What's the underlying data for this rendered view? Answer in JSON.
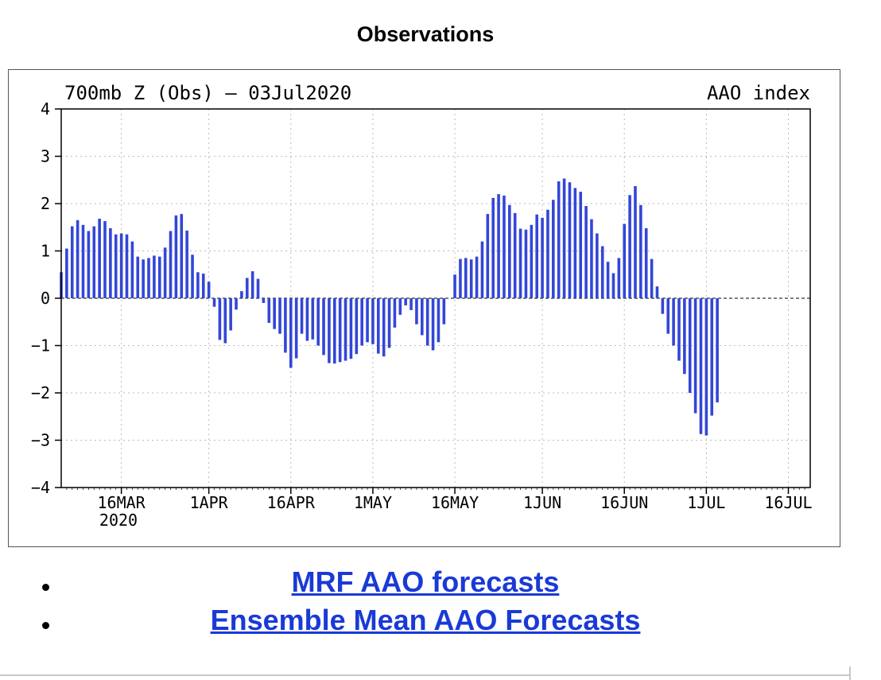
{
  "heading": "Observations",
  "links": [
    {
      "label": "MRF AAO forecasts"
    },
    {
      "label": "Ensemble Mean AAO Forecasts"
    }
  ],
  "colors": {
    "bar": "#3346d8",
    "link": "#1a3ad6"
  },
  "chart_data": {
    "type": "bar",
    "title": "700mb Z (Obs) — 03Jul2020",
    "title_right": "AAO index",
    "ylim": [
      -4,
      4
    ],
    "yticks": [
      4,
      3,
      2,
      1,
      0,
      -1,
      -2,
      -3,
      -4
    ],
    "ytick_labels": [
      "4",
      "3",
      "2",
      "1",
      "0",
      "−1",
      "−2",
      "−3",
      "−4"
    ],
    "xlim": [
      "2020-03-05",
      "2020-07-20"
    ],
    "x_start": "2020-03-05",
    "xticks": [
      {
        "date": "2020-03-16",
        "label": "16MAR"
      },
      {
        "date": "2020-04-01",
        "label": "1APR"
      },
      {
        "date": "2020-04-16",
        "label": "16APR"
      },
      {
        "date": "2020-05-01",
        "label": "1MAY"
      },
      {
        "date": "2020-05-16",
        "label": "16MAY"
      },
      {
        "date": "2020-06-01",
        "label": "1JUN"
      },
      {
        "date": "2020-06-16",
        "label": "16JUN"
      },
      {
        "date": "2020-07-01",
        "label": "1JUL"
      },
      {
        "date": "2020-07-16",
        "label": "16JUL"
      }
    ],
    "year_label": "2020",
    "grid": true,
    "values": [
      0.55,
      1.05,
      1.52,
      1.65,
      1.55,
      1.42,
      1.52,
      1.68,
      1.63,
      1.48,
      1.35,
      1.37,
      1.35,
      1.2,
      0.88,
      0.82,
      0.85,
      0.9,
      0.88,
      1.07,
      1.42,
      1.75,
      1.78,
      1.43,
      0.92,
      0.55,
      0.52,
      0.35,
      -0.18,
      -0.88,
      -0.95,
      -0.68,
      -0.24,
      0.15,
      0.43,
      0.57,
      0.41,
      -0.1,
      -0.52,
      -0.65,
      -0.75,
      -1.15,
      -1.47,
      -1.27,
      -0.75,
      -0.9,
      -0.87,
      -1.0,
      -1.2,
      -1.37,
      -1.38,
      -1.35,
      -1.32,
      -1.28,
      -1.18,
      -1.0,
      -0.93,
      -0.97,
      -1.17,
      -1.23,
      -1.05,
      -0.62,
      -0.35,
      -0.15,
      -0.25,
      -0.55,
      -0.78,
      -1.0,
      -1.1,
      -0.93,
      -0.55,
      0.0,
      0.5,
      0.83,
      0.85,
      0.82,
      0.88,
      1.2,
      1.78,
      2.12,
      2.2,
      2.17,
      1.97,
      1.8,
      1.47,
      1.45,
      1.55,
      1.77,
      1.7,
      1.87,
      2.08,
      2.47,
      2.53,
      2.45,
      2.33,
      2.25,
      1.95,
      1.67,
      1.37,
      1.1,
      0.77,
      0.53,
      0.85,
      1.57,
      2.18,
      2.37,
      1.97,
      1.48,
      0.83,
      0.25,
      -0.33,
      -0.75,
      -1.0,
      -1.32,
      -1.6,
      -2.0,
      -2.43,
      -2.87,
      -2.9,
      -2.48,
      -2.2
    ]
  }
}
